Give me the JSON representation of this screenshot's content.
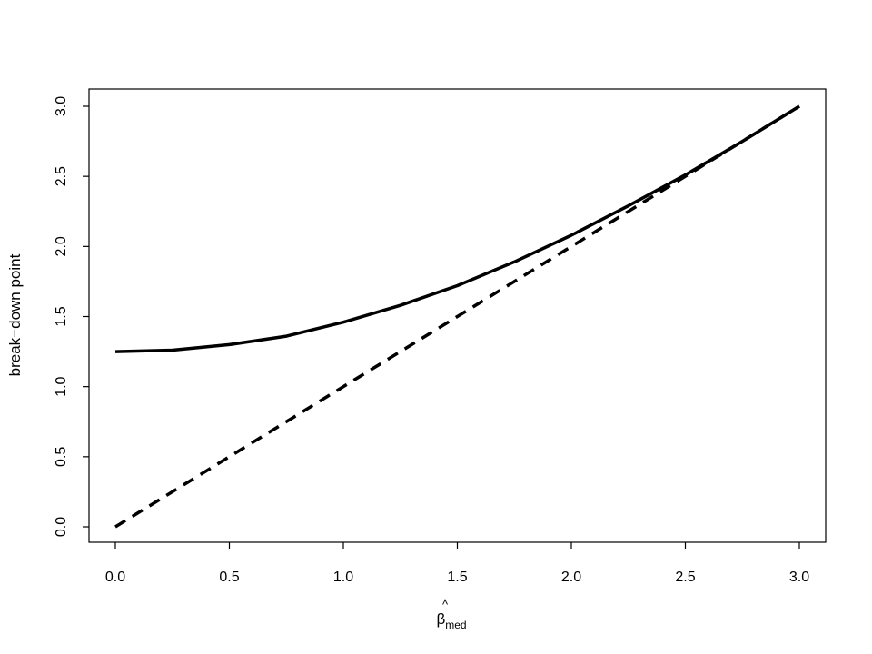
{
  "chart_data": {
    "type": "line",
    "title": "",
    "xlabel": {
      "symbol": "β",
      "accent": "^",
      "subscript": "med"
    },
    "ylabel": "break−down point",
    "xlim": [
      0.0,
      3.0
    ],
    "ylim": [
      0.0,
      3.0
    ],
    "x_ticks": [
      0.0,
      0.5,
      1.0,
      1.5,
      2.0,
      2.5,
      3.0
    ],
    "x_tick_labels": [
      "0.0",
      "0.5",
      "1.0",
      "1.5",
      "2.0",
      "2.5",
      "3.0"
    ],
    "y_ticks": [
      0.0,
      0.5,
      1.0,
      1.5,
      2.0,
      2.5,
      3.0
    ],
    "y_tick_labels": [
      "0.0",
      "0.5",
      "1.0",
      "1.5",
      "2.0",
      "2.5",
      "3.0"
    ],
    "grid": false,
    "legend": "none",
    "line_color": "#000000",
    "series": [
      {
        "style": "solid",
        "x": [
          0.0,
          0.25,
          0.5,
          0.75,
          1.0,
          1.25,
          1.5,
          1.75,
          2.0,
          2.25,
          2.5,
          2.75,
          3.0
        ],
        "y": [
          1.25,
          1.26,
          1.3,
          1.36,
          1.46,
          1.58,
          1.72,
          1.89,
          2.08,
          2.29,
          2.51,
          2.75,
          3.0
        ]
      },
      {
        "style": "dashed",
        "x": [
          0.0,
          3.0
        ],
        "y": [
          0.0,
          3.0
        ]
      }
    ]
  }
}
